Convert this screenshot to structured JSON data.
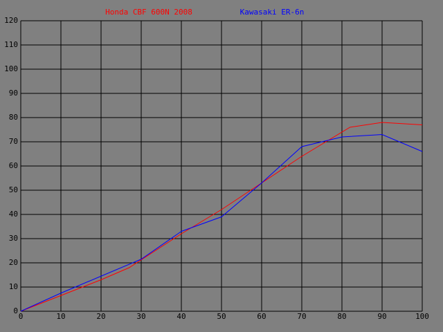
{
  "chart_data": {
    "type": "line",
    "legend": "top",
    "grid": true,
    "background": "#808080",
    "grid_color": "#000000",
    "xlim": [
      0,
      100
    ],
    "xticks": [
      0,
      10,
      20,
      30,
      40,
      50,
      60,
      70,
      80,
      90,
      100
    ],
    "ylim": [
      0,
      120
    ],
    "yticks": [
      0,
      10,
      20,
      30,
      40,
      50,
      60,
      70,
      80,
      90,
      100,
      110,
      120
    ],
    "series": [
      {
        "name": "Honda CBF 600N 2008",
        "color": "#ff0000",
        "x": [
          0,
          10,
          20,
          27,
          40,
          50,
          60,
          70,
          82,
          90,
          100
        ],
        "values": [
          0,
          6.5,
          13,
          18,
          32,
          42,
          53,
          64,
          76,
          78,
          77
        ]
      },
      {
        "name": "Kawasaki ER-6n",
        "color": "#0000ff",
        "x": [
          0,
          10,
          20,
          30,
          40,
          50,
          60,
          70,
          80,
          90,
          100
        ],
        "values": [
          0,
          7.5,
          14.5,
          21.5,
          33,
          39,
          53,
          68,
          72,
          73,
          66
        ]
      }
    ]
  }
}
